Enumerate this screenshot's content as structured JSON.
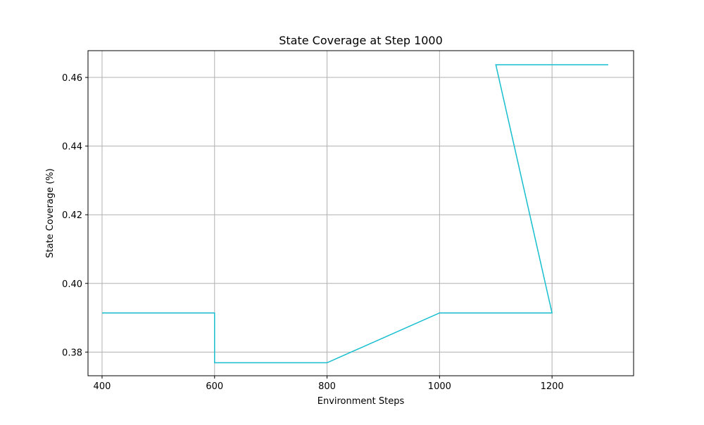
{
  "chart_data": {
    "type": "line",
    "title": "State Coverage at Step 1000",
    "xlabel": "Environment Steps",
    "ylabel": "State Coverage (%)",
    "xlim": [
      375,
      1345
    ],
    "ylim": [
      0.3731,
      0.4678
    ],
    "xticks": [
      400,
      600,
      800,
      1000,
      1200
    ],
    "yticks": [
      0.38,
      0.4,
      0.42,
      0.44,
      0.46
    ],
    "xtick_labels": [
      "400",
      "600",
      "800",
      "1000",
      "1200"
    ],
    "ytick_labels": [
      "0.38",
      "0.40",
      "0.42",
      "0.44",
      "0.46"
    ],
    "grid": true,
    "series": [
      {
        "color": "#17becf",
        "x": [
          400,
          600,
          600,
          800,
          1000,
          1200,
          1100,
          1300
        ],
        "y": [
          0.3914,
          0.3914,
          0.3769,
          0.3769,
          0.3914,
          0.3914,
          0.4637,
          0.4637
        ]
      }
    ]
  }
}
